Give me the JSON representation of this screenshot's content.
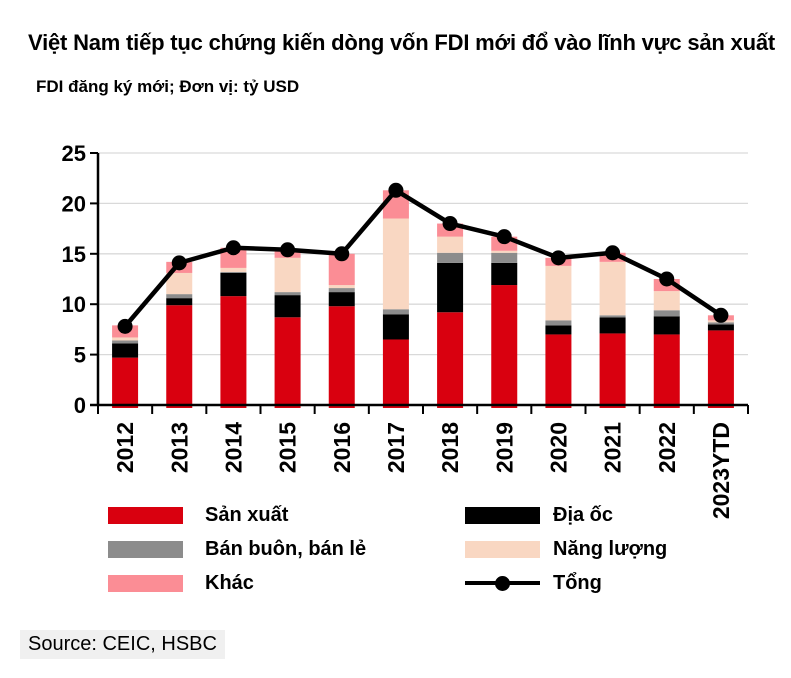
{
  "header": {
    "title": "Việt Nam tiếp tục chứng kiến dòng vốn FDI mới đổ vào lĩnh vực sản xuất",
    "subtitle": "FDI đăng ký mới; Đơn vị: tỷ USD"
  },
  "chart_data": {
    "type": "bar",
    "stacked": true,
    "title": "Việt Nam tiếp tục chứng kiến dòng vốn FDI mới đổ vào lĩnh vực sản xuất",
    "subtitle": "FDI đăng ký mới; Đơn vị: tỷ USD",
    "categories": [
      "2012",
      "2013",
      "2014",
      "2015",
      "2016",
      "2017",
      "2018",
      "2019",
      "2020",
      "2021",
      "2022",
      "2023YTD"
    ],
    "series": [
      {
        "name": "Sản xuất",
        "color": "#D9000F",
        "values": [
          4.7,
          9.9,
          10.8,
          8.7,
          9.8,
          6.5,
          9.2,
          11.9,
          7.0,
          7.1,
          7.0,
          7.4
        ]
      },
      {
        "name": "Địa ốc",
        "color": "#000000",
        "values": [
          1.4,
          0.7,
          2.3,
          2.2,
          1.4,
          2.5,
          4.9,
          2.2,
          0.9,
          1.6,
          1.8,
          0.6
        ]
      },
      {
        "name": "Bán buôn, bán lẻ",
        "color": "#8C8C8C",
        "values": [
          0.3,
          0.4,
          0.1,
          0.3,
          0.4,
          0.5,
          1.0,
          1.0,
          0.5,
          0.2,
          0.6,
          0.2
        ]
      },
      {
        "name": "Năng lượng",
        "color": "#F9D7C2",
        "values": [
          0.3,
          2.1,
          0.4,
          3.4,
          0.3,
          9.0,
          1.6,
          0.2,
          5.4,
          5.3,
          1.9,
          0.2
        ]
      },
      {
        "name": "Khác",
        "color": "#FB8D95",
        "values": [
          1.2,
          1.1,
          2.0,
          0.7,
          3.1,
          2.8,
          1.3,
          1.4,
          0.8,
          0.9,
          1.2,
          0.5
        ]
      }
    ],
    "line_series": {
      "name": "Tổng",
      "color": "#000000",
      "values": [
        7.8,
        14.1,
        15.6,
        15.4,
        15.0,
        21.3,
        18.0,
        16.7,
        14.6,
        15.1,
        12.5,
        8.9
      ]
    },
    "xlabel": "",
    "ylabel": "",
    "ylim": [
      0,
      25
    ],
    "yticks": [
      0,
      5,
      10,
      15,
      20,
      25
    ],
    "grid": true,
    "gridcolor": "#D9D9D9",
    "legend_position": "bottom"
  },
  "legend": {
    "left": [
      {
        "label": "Sản xuất",
        "color": "#D9000F",
        "marker": "box"
      },
      {
        "label": "Bán buôn, bán lẻ",
        "color": "#8C8C8C",
        "marker": "box"
      },
      {
        "label": "Khác",
        "color": "#FB8D95",
        "marker": "box"
      }
    ],
    "right": [
      {
        "label": "Địa ốc",
        "color": "#000000",
        "marker": "box"
      },
      {
        "label": "Năng lượng",
        "color": "#F9D7C2",
        "marker": "box"
      },
      {
        "label": "Tổng",
        "color": "#000000",
        "marker": "line-dot"
      }
    ]
  },
  "source": {
    "label": "Source: CEIC, HSBC"
  }
}
